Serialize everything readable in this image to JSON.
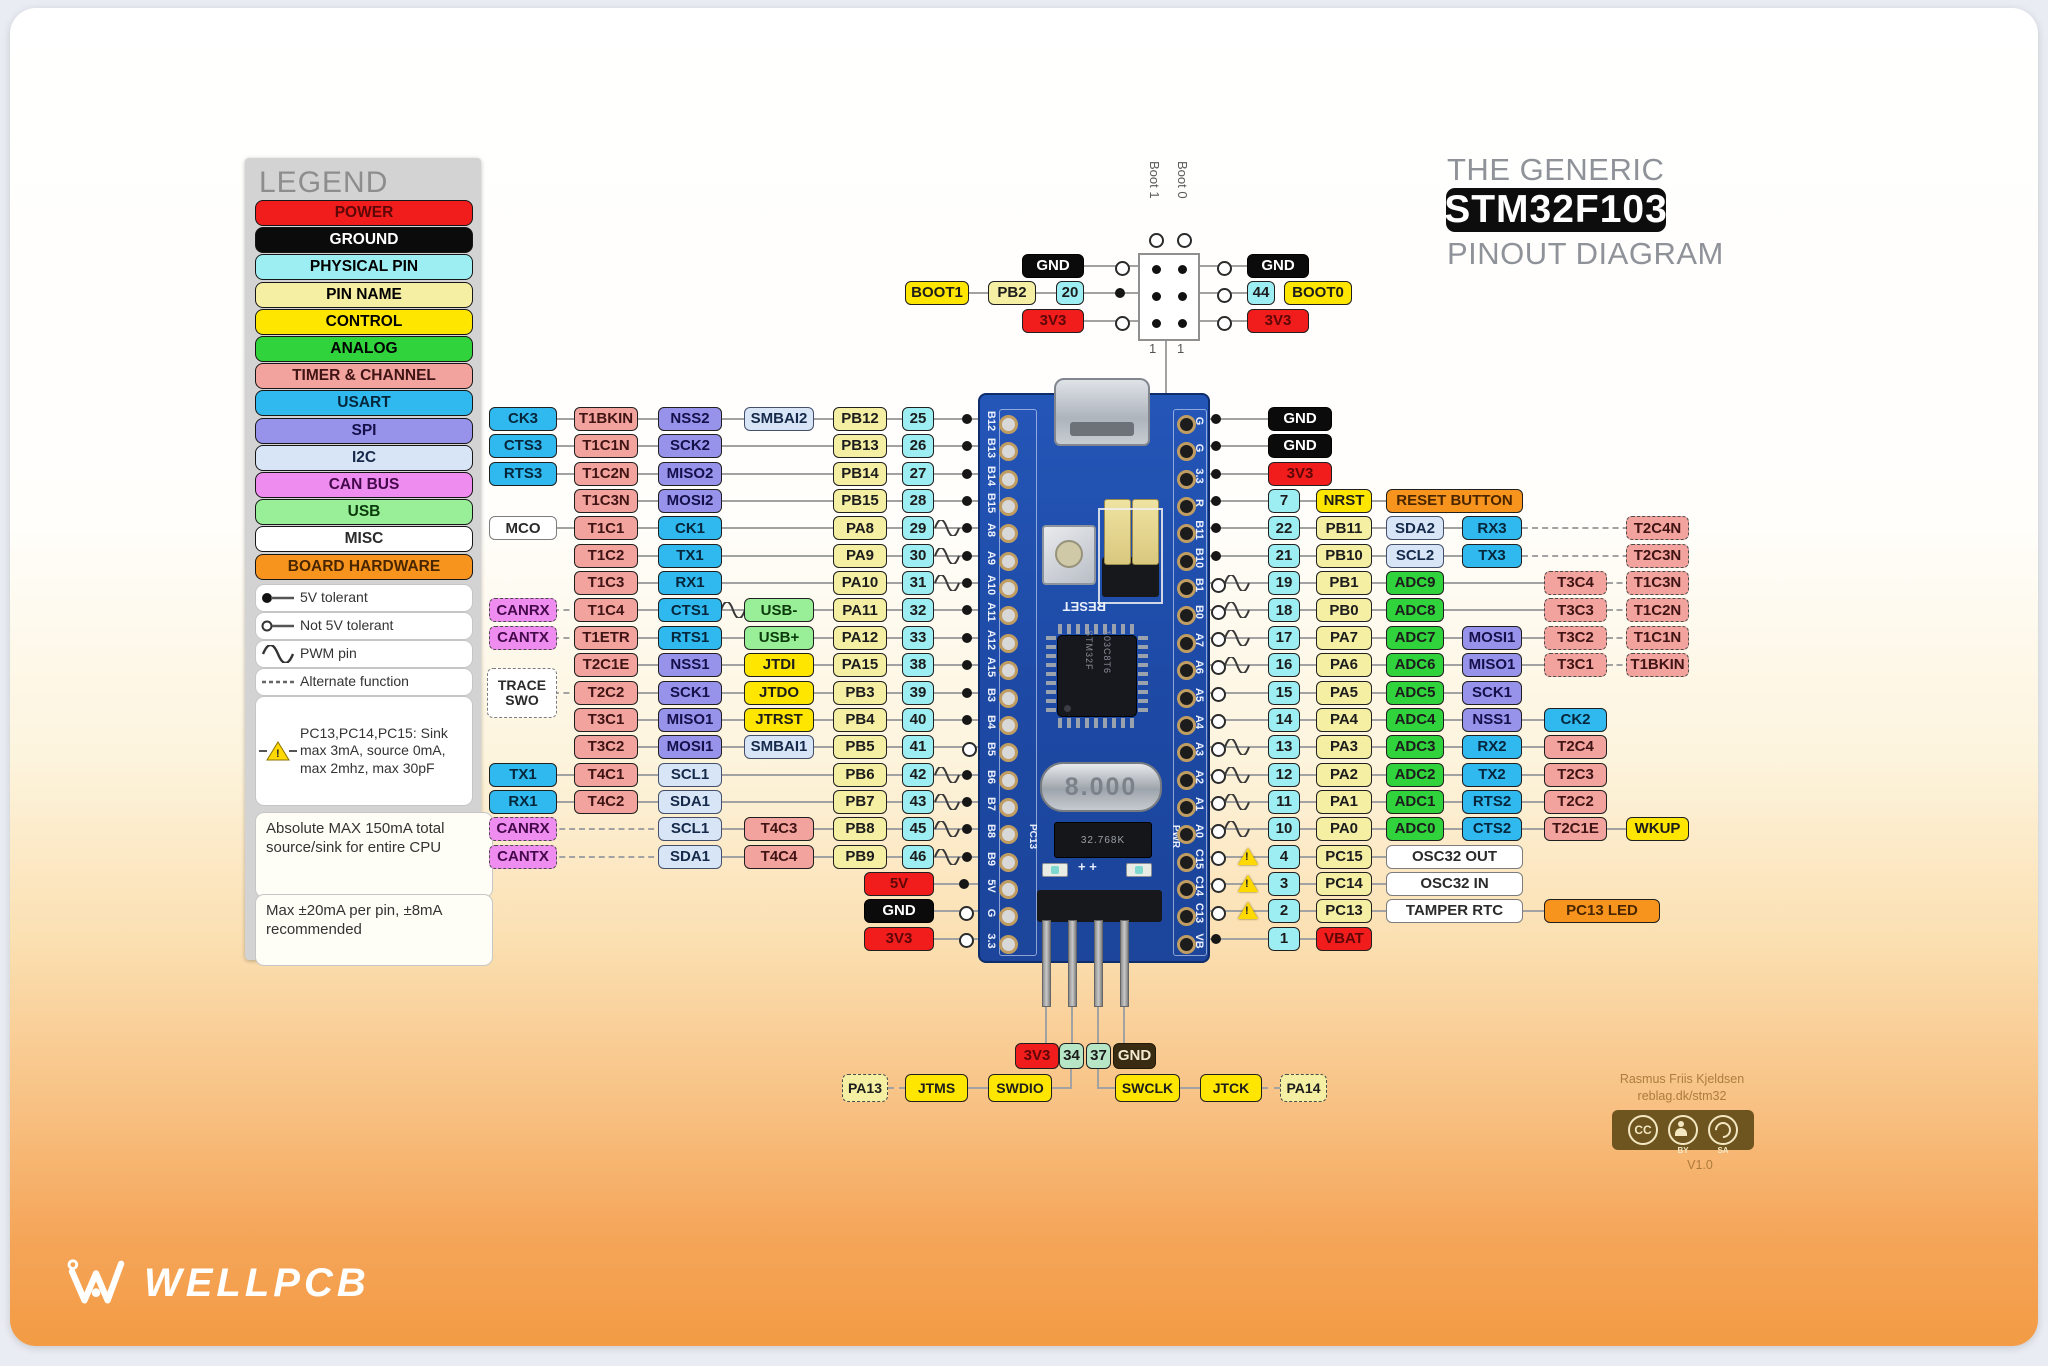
{
  "title": {
    "line1": "THE GENERIC",
    "line2": "STM32F103",
    "line3": "PINOUT DIAGRAM"
  },
  "colors": {
    "power": "#f11c1c",
    "ground": "#0b0b0b",
    "phys": "#9deef2",
    "name": "#f5efa4",
    "ctrl": "#ffe600",
    "analog": "#31d33d",
    "timer": "#f2a39d",
    "usart": "#2fb9ee",
    "spi": "#9893ea",
    "i2c": "#d8e5f6",
    "can": "#ef8cf0",
    "usb": "#98ef98",
    "misc": "#ffffff",
    "hw": "#f7941d",
    "physg": "#b7e6c6",
    "gnddark": "#3a2c12"
  },
  "legend": {
    "title": "LEGEND",
    "items": [
      {
        "label": "POWER",
        "type": "power"
      },
      {
        "label": "GROUND",
        "type": "ground"
      },
      {
        "label": "PHYSICAL PIN",
        "type": "phys"
      },
      {
        "label": "PIN NAME",
        "type": "name"
      },
      {
        "label": "CONTROL",
        "type": "ctrl"
      },
      {
        "label": "ANALOG",
        "type": "analog"
      },
      {
        "label": "TIMER & CHANNEL",
        "type": "timer"
      },
      {
        "label": "USART",
        "type": "usart"
      },
      {
        "label": "SPI",
        "type": "spi"
      },
      {
        "label": "I2C",
        "type": "i2c"
      },
      {
        "label": "CAN BUS",
        "type": "can"
      },
      {
        "label": "USB",
        "type": "usb"
      },
      {
        "label": "MISC",
        "type": "misc"
      },
      {
        "label": "BOARD HARDWARE",
        "type": "hw"
      }
    ],
    "notes": [
      {
        "icon": "dot",
        "text": "5V tolerant"
      },
      {
        "icon": "circle",
        "text": "Not 5V tolerant"
      },
      {
        "icon": "pwm",
        "text": "PWM pin"
      },
      {
        "icon": "dash",
        "text": "Alternate function"
      },
      {
        "icon": "warn",
        "text": "PC13,PC14,PC15: Sink max 3mA, source 0mA, max 2mhz, max 30pF"
      }
    ],
    "footnotes": [
      "Absolute MAX 150mA total source/sink for entire CPU",
      "Max ±20mA per pin, ±8mA recommended"
    ]
  },
  "boot": {
    "left": {
      "func": "BOOT1",
      "name": "PB2",
      "pin": "20",
      "top": "GND",
      "bottom": "3V3"
    },
    "right": {
      "func": "BOOT0",
      "pin": "44",
      "top": "GND",
      "bottom": "3V3"
    },
    "header": {
      "col1": "Boot 1",
      "col2": "Boot 0",
      "one1": "1",
      "one2": "1"
    }
  },
  "left_rows": [
    {
      "pin": "25",
      "name": "PB12",
      "sym": "dot",
      "cells": [
        {
          "l": "CK3",
          "t": "usart",
          "s": "a"
        },
        {
          "l": "T1BKIN",
          "t": "timer",
          "s": "b"
        },
        {
          "l": "NSS2",
          "t": "spi",
          "s": "c"
        },
        {
          "l": "SMBAI2",
          "t": "i2c",
          "s": "d"
        }
      ]
    },
    {
      "pin": "26",
      "name": "PB13",
      "sym": "dot",
      "cells": [
        {
          "l": "CTS3",
          "t": "usart",
          "s": "a"
        },
        {
          "l": "T1C1N",
          "t": "timer",
          "s": "b"
        },
        {
          "l": "SCK2",
          "t": "spi",
          "s": "c"
        }
      ]
    },
    {
      "pin": "27",
      "name": "PB14",
      "sym": "dot",
      "cells": [
        {
          "l": "RTS3",
          "t": "usart",
          "s": "a"
        },
        {
          "l": "T1C2N",
          "t": "timer",
          "s": "b"
        },
        {
          "l": "MISO2",
          "t": "spi",
          "s": "c"
        }
      ]
    },
    {
      "pin": "28",
      "name": "PB15",
      "sym": "dot",
      "cells": [
        {
          "l": "T1C3N",
          "t": "timer",
          "s": "b"
        },
        {
          "l": "MOSI2",
          "t": "spi",
          "s": "c"
        }
      ]
    },
    {
      "pin": "29",
      "name": "PA8",
      "sym": "dot",
      "pwm": 1,
      "cells": [
        {
          "l": "MCO",
          "t": "misc",
          "s": "a"
        },
        {
          "l": "T1C1",
          "t": "timer",
          "s": "b"
        },
        {
          "l": "CK1",
          "t": "usart",
          "s": "c"
        }
      ]
    },
    {
      "pin": "30",
      "name": "PA9",
      "sym": "dot",
      "pwm": 1,
      "cells": [
        {
          "l": "T1C2",
          "t": "timer",
          "s": "b"
        },
        {
          "l": "TX1",
          "t": "usart",
          "s": "c"
        }
      ]
    },
    {
      "pin": "31",
      "name": "PA10",
      "sym": "dot",
      "pwm": 1,
      "cells": [
        {
          "l": "T1C3",
          "t": "timer",
          "s": "b"
        },
        {
          "l": "RX1",
          "t": "usart",
          "s": "c"
        }
      ]
    },
    {
      "pin": "32",
      "name": "PA11",
      "sym": "dot",
      "adash": 1,
      "midwave": 1,
      "cells": [
        {
          "l": "CANRX",
          "t": "can",
          "s": "a",
          "d": 1
        },
        {
          "l": "T1C4",
          "t": "timer",
          "s": "b"
        },
        {
          "l": "CTS1",
          "t": "usart",
          "s": "c"
        },
        {
          "l": "USB-",
          "t": "usb",
          "s": "d"
        }
      ]
    },
    {
      "pin": "33",
      "name": "PA12",
      "sym": "dot",
      "adash": 1,
      "cells": [
        {
          "l": "CANTX",
          "t": "can",
          "s": "a",
          "d": 1
        },
        {
          "l": "T1ETR",
          "t": "timer",
          "s": "b"
        },
        {
          "l": "RTS1",
          "t": "usart",
          "s": "c"
        },
        {
          "l": "USB+",
          "t": "usb",
          "s": "d"
        }
      ]
    },
    {
      "pin": "38",
      "name": "PA15",
      "sym": "dot",
      "cells": [
        {
          "l": "T2C1E",
          "t": "timer",
          "s": "b"
        },
        {
          "l": "NSS1",
          "t": "spi",
          "s": "c"
        },
        {
          "l": "JTDI",
          "t": "ctrl",
          "s": "d"
        }
      ]
    },
    {
      "pin": "39",
      "name": "PB3",
      "sym": "dot",
      "adash": 1,
      "cells": [
        {
          "l": "TRACE SWO",
          "t": "misc",
          "s": "a2",
          "d": 1
        },
        {
          "l": "T2C2",
          "t": "timer",
          "s": "b"
        },
        {
          "l": "SCK1",
          "t": "spi",
          "s": "c"
        },
        {
          "l": "JTDO",
          "t": "ctrl",
          "s": "d"
        }
      ]
    },
    {
      "pin": "40",
      "name": "PB4",
      "sym": "dot",
      "cells": [
        {
          "l": "T3C1",
          "t": "timer",
          "s": "b"
        },
        {
          "l": "MISO1",
          "t": "spi",
          "s": "c"
        },
        {
          "l": "JTRST",
          "t": "ctrl",
          "s": "d"
        }
      ]
    },
    {
      "pin": "41",
      "name": "PB5",
      "sym": "circle",
      "cells": [
        {
          "l": "T3C2",
          "t": "timer",
          "s": "b"
        },
        {
          "l": "MOSI1",
          "t": "spi",
          "s": "c"
        },
        {
          "l": "SMBAI1",
          "t": "i2c",
          "s": "d"
        }
      ]
    },
    {
      "pin": "42",
      "name": "PB6",
      "sym": "dot",
      "pwm": 1,
      "cells": [
        {
          "l": "TX1",
          "t": "usart",
          "s": "a"
        },
        {
          "l": "T4C1",
          "t": "timer",
          "s": "b"
        },
        {
          "l": "SCL1",
          "t": "i2c",
          "s": "c"
        }
      ]
    },
    {
      "pin": "43",
      "name": "PB7",
      "sym": "dot",
      "pwm": 1,
      "cells": [
        {
          "l": "RX1",
          "t": "usart",
          "s": "a"
        },
        {
          "l": "T4C2",
          "t": "timer",
          "s": "b"
        },
        {
          "l": "SDA1",
          "t": "i2c",
          "s": "c"
        }
      ]
    },
    {
      "pin": "45",
      "name": "PB8",
      "sym": "dot",
      "pwm": 1,
      "adash": 1,
      "adashto": 658,
      "cells": [
        {
          "l": "CANRX",
          "t": "can",
          "s": "a",
          "d": 1
        },
        {
          "l": "SCL1",
          "t": "i2c",
          "s": "c"
        },
        {
          "l": "T4C3",
          "t": "timer",
          "s": "d"
        }
      ]
    },
    {
      "pin": "46",
      "name": "PB9",
      "sym": "dot",
      "pwm": 1,
      "adash": 1,
      "adashto": 658,
      "cells": [
        {
          "l": "CANTX",
          "t": "can",
          "s": "a",
          "d": 1
        },
        {
          "l": "SDA1",
          "t": "i2c",
          "s": "c"
        },
        {
          "l": "T4C4",
          "t": "timer",
          "s": "d"
        }
      ]
    }
  ],
  "left_power": [
    {
      "l": "5V",
      "t": "power",
      "sym": "dot"
    },
    {
      "l": "GND",
      "t": "ground",
      "sym": "circle"
    },
    {
      "l": "3V3",
      "t": "power",
      "sym": "circle"
    }
  ],
  "right_rows": [
    {
      "power": "GND",
      "t": "ground",
      "sym": "dot"
    },
    {
      "power": "GND",
      "t": "ground",
      "sym": "dot"
    },
    {
      "power": "3V3",
      "t": "power",
      "sym": "dot"
    },
    {
      "pin": "7",
      "name": "NRST",
      "nt": "ctrl",
      "sym": "dot",
      "cells": [
        {
          "l": "RESET BUTTON",
          "t": "hw",
          "s": "wide"
        }
      ]
    },
    {
      "pin": "22",
      "name": "PB11",
      "sym": "dot",
      "dx": 1,
      "cells": [
        {
          "l": "SDA2",
          "t": "i2c",
          "s": "c1"
        },
        {
          "l": "RX3",
          "t": "usart",
          "s": "c2"
        },
        {
          "l": "T2C4N",
          "t": "timer",
          "s": "c4",
          "d": 1
        }
      ]
    },
    {
      "pin": "21",
      "name": "PB10",
      "sym": "dot",
      "dx": 1,
      "cells": [
        {
          "l": "SCL2",
          "t": "i2c",
          "s": "c1"
        },
        {
          "l": "TX3",
          "t": "usart",
          "s": "c2"
        },
        {
          "l": "T2C3N",
          "t": "timer",
          "s": "c4",
          "d": 1
        }
      ]
    },
    {
      "pin": "19",
      "name": "PB1",
      "sym": "circle",
      "pwm": 1,
      "dx": 1,
      "cells": [
        {
          "l": "ADC9",
          "t": "analog",
          "s": "c1"
        },
        {
          "l": "T3C4",
          "t": "timer",
          "s": "c3",
          "d": 1
        },
        {
          "l": "T1C3N",
          "t": "timer",
          "s": "c4",
          "d": 1
        }
      ]
    },
    {
      "pin": "18",
      "name": "PB0",
      "sym": "circle",
      "pwm": 1,
      "dx": 1,
      "cells": [
        {
          "l": "ADC8",
          "t": "analog",
          "s": "c1"
        },
        {
          "l": "T3C3",
          "t": "timer",
          "s": "c3",
          "d": 1
        },
        {
          "l": "T1C2N",
          "t": "timer",
          "s": "c4",
          "d": 1
        }
      ]
    },
    {
      "pin": "17",
      "name": "PA7",
      "sym": "circle",
      "pwm": 1,
      "dx": 1,
      "cells": [
        {
          "l": "ADC7",
          "t": "analog",
          "s": "c1"
        },
        {
          "l": "MOSI1",
          "t": "spi",
          "s": "c2"
        },
        {
          "l": "T3C2",
          "t": "timer",
          "s": "c3",
          "d": 1
        },
        {
          "l": "T1C1N",
          "t": "timer",
          "s": "c4",
          "d": 1
        }
      ]
    },
    {
      "pin": "16",
      "name": "PA6",
      "sym": "circle",
      "pwm": 1,
      "dx": 1,
      "cells": [
        {
          "l": "ADC6",
          "t": "analog",
          "s": "c1"
        },
        {
          "l": "MISO1",
          "t": "spi",
          "s": "c2"
        },
        {
          "l": "T3C1",
          "t": "timer",
          "s": "c3",
          "d": 1
        },
        {
          "l": "T1BKIN",
          "t": "timer",
          "s": "c4",
          "d": 1
        }
      ]
    },
    {
      "pin": "15",
      "name": "PA5",
      "sym": "circle",
      "cells": [
        {
          "l": "ADC5",
          "t": "analog",
          "s": "c1"
        },
        {
          "l": "SCK1",
          "t": "spi",
          "s": "c2"
        }
      ]
    },
    {
      "pin": "14",
      "name": "PA4",
      "sym": "circle",
      "cells": [
        {
          "l": "ADC4",
          "t": "analog",
          "s": "c1"
        },
        {
          "l": "NSS1",
          "t": "spi",
          "s": "c2"
        },
        {
          "l": "CK2",
          "t": "usart",
          "s": "c3"
        }
      ]
    },
    {
      "pin": "13",
      "name": "PA3",
      "sym": "circle",
      "pwm": 1,
      "cells": [
        {
          "l": "ADC3",
          "t": "analog",
          "s": "c1"
        },
        {
          "l": "RX2",
          "t": "usart",
          "s": "c2"
        },
        {
          "l": "T2C4",
          "t": "timer",
          "s": "c3"
        }
      ]
    },
    {
      "pin": "12",
      "name": "PA2",
      "sym": "circle",
      "pwm": 1,
      "cells": [
        {
          "l": "ADC2",
          "t": "analog",
          "s": "c1"
        },
        {
          "l": "TX2",
          "t": "usart",
          "s": "c2"
        },
        {
          "l": "T2C3",
          "t": "timer",
          "s": "c3"
        }
      ]
    },
    {
      "pin": "11",
      "name": "PA1",
      "sym": "circle",
      "pwm": 1,
      "cells": [
        {
          "l": "ADC1",
          "t": "analog",
          "s": "c1"
        },
        {
          "l": "RTS2",
          "t": "usart",
          "s": "c2"
        },
        {
          "l": "T2C2",
          "t": "timer",
          "s": "c3"
        }
      ]
    },
    {
      "pin": "10",
      "name": "PA0",
      "sym": "circle",
      "pwm": 1,
      "cells": [
        {
          "l": "ADC0",
          "t": "analog",
          "s": "c1"
        },
        {
          "l": "CTS2",
          "t": "usart",
          "s": "c2"
        },
        {
          "l": "T2C1E",
          "t": "timer",
          "s": "c3"
        },
        {
          "l": "WKUP",
          "t": "ctrl",
          "s": "c4"
        }
      ]
    },
    {
      "pin": "4",
      "name": "PC15",
      "sym": "circle",
      "warn": 1,
      "cells": [
        {
          "l": "OSC32 OUT",
          "t": "misc",
          "s": "wide"
        }
      ]
    },
    {
      "pin": "3",
      "name": "PC14",
      "sym": "circle",
      "warn": 1,
      "cells": [
        {
          "l": "OSC32 IN",
          "t": "misc",
          "s": "wide"
        }
      ]
    },
    {
      "pin": "2",
      "name": "PC13",
      "sym": "circle",
      "warn": 1,
      "cells": [
        {
          "l": "TAMPER RTC",
          "t": "misc",
          "s": "wide"
        },
        {
          "l": "PC13 LED",
          "t": "hw",
          "s": "led"
        }
      ]
    },
    {
      "pin": "1",
      "name": "VBAT",
      "nt": "power",
      "sym": "dot",
      "cells": []
    }
  ],
  "board": {
    "left_labels": [
      "B12",
      "B13",
      "B14",
      "B15",
      "A8",
      "A9",
      "A10",
      "A11",
      "A12",
      "A15",
      "B3",
      "B4",
      "B5",
      "B6",
      "B7",
      "B8",
      "B9",
      "5V",
      "G",
      "3.3"
    ],
    "right_labels": [
      "G",
      "G",
      "3.3",
      "R",
      "B11",
      "B10",
      "B1",
      "B0",
      "A7",
      "A6",
      "A5",
      "A4",
      "A3",
      "A2",
      "A1",
      "A0",
      "C15",
      "C14",
      "C13",
      "VB"
    ],
    "reset": "RESET",
    "crystal": "8.000",
    "crystal2": "32.768K",
    "pc13": "PC13",
    "pwr": "PWR",
    "chip_line1": "STM32F",
    "chip_line2": "103C8T6"
  },
  "bottom": {
    "power": [
      {
        "l": "3V3",
        "t": "power"
      },
      {
        "l": "34",
        "t": "physg"
      },
      {
        "l": "37",
        "t": "physg"
      },
      {
        "l": "GND",
        "t": "gnddark"
      }
    ],
    "debug": [
      {
        "l": "PA13",
        "t": "name",
        "d": 1
      },
      {
        "l": "JTMS",
        "t": "ctrl"
      },
      {
        "l": "SWDIO",
        "t": "ctrl"
      },
      {
        "l": "SWCLK",
        "t": "ctrl"
      },
      {
        "l": "JTCK",
        "t": "ctrl"
      },
      {
        "l": "PA14",
        "t": "name",
        "d": 1
      }
    ]
  },
  "attribution": {
    "line1": "Rasmus Friis Kjeldsen",
    "line2": "reblag.dk/stm32",
    "version": "V1.0",
    "badge_cc": "CC",
    "badge_by": "BY",
    "badge_sa": "SA"
  },
  "logo": {
    "text": "WELLPCB"
  }
}
